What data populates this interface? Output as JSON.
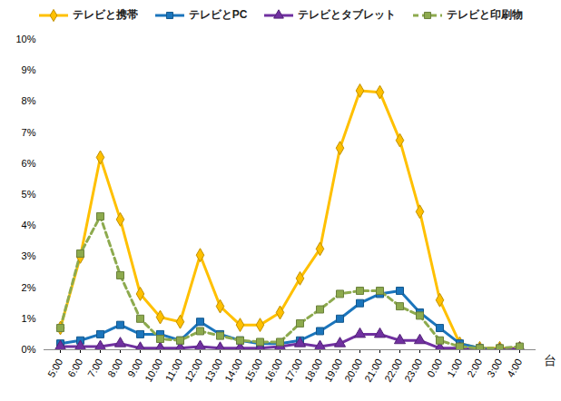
{
  "chart_data": {
    "type": "line",
    "x_label": "台",
    "categories": [
      "5:00",
      "6:00",
      "7:00",
      "8:00",
      "9:00",
      "10:00",
      "11:00",
      "12:00",
      "13:00",
      "14:00",
      "15:00",
      "16:00",
      "17:00",
      "18:00",
      "19:00",
      "20:00",
      "21:00",
      "22:00",
      "23:00",
      "0:00",
      "1:00",
      "2:00",
      "3:00",
      "4:00"
    ],
    "series": [
      {
        "name": "テレビと携帯",
        "color": "#FFC000",
        "marker": "diamond",
        "line_style": "solid",
        "values": [
          0.7,
          3.0,
          6.2,
          4.2,
          1.8,
          1.05,
          0.9,
          3.05,
          1.4,
          0.8,
          0.8,
          1.2,
          2.3,
          3.25,
          6.5,
          8.35,
          8.3,
          6.75,
          4.45,
          1.6,
          0.2,
          0.05,
          0.05,
          0.05
        ]
      },
      {
        "name": "テレビとPC",
        "color": "#1B75BC",
        "marker": "square",
        "line_style": "solid",
        "values": [
          0.2,
          0.3,
          0.5,
          0.8,
          0.5,
          0.5,
          0.3,
          0.9,
          0.5,
          0.3,
          0.2,
          0.2,
          0.3,
          0.6,
          1.0,
          1.5,
          1.8,
          1.9,
          1.2,
          0.7,
          0.2,
          0.05,
          0.0,
          0.0
        ]
      },
      {
        "name": "テレビとタブレット",
        "color": "#7030A0",
        "marker": "triangle",
        "line_style": "solid",
        "values": [
          0.1,
          0.1,
          0.1,
          0.2,
          0.05,
          0.05,
          0.05,
          0.1,
          0.05,
          0.05,
          0.05,
          0.1,
          0.2,
          0.1,
          0.2,
          0.5,
          0.5,
          0.3,
          0.3,
          0.05,
          0.05,
          0.0,
          0.0,
          0.05
        ]
      },
      {
        "name": "テレビと印刷物",
        "color": "#8DAA4E",
        "marker": "square",
        "line_style": "dashed",
        "values": [
          0.7,
          3.1,
          4.3,
          2.4,
          1.0,
          0.35,
          0.3,
          0.6,
          0.45,
          0.3,
          0.25,
          0.25,
          0.85,
          1.3,
          1.8,
          1.9,
          1.9,
          1.4,
          1.1,
          0.3,
          0.1,
          0.05,
          0.05,
          0.1
        ]
      }
    ],
    "ylim": [
      0,
      10
    ],
    "yticks": [
      {
        "value": 0,
        "label": "0%"
      },
      {
        "value": 1,
        "label": "1%"
      },
      {
        "value": 2,
        "label": "2%"
      },
      {
        "value": 3,
        "label": "3%"
      },
      {
        "value": 4,
        "label": "4%"
      },
      {
        "value": 5,
        "label": "5%"
      },
      {
        "value": 6,
        "label": "6%"
      },
      {
        "value": 7,
        "label": "7%"
      },
      {
        "value": 8,
        "label": "8%"
      },
      {
        "value": 9,
        "label": "9%"
      },
      {
        "value": 10,
        "label": "10%"
      }
    ],
    "grid": false,
    "legend": "top"
  }
}
